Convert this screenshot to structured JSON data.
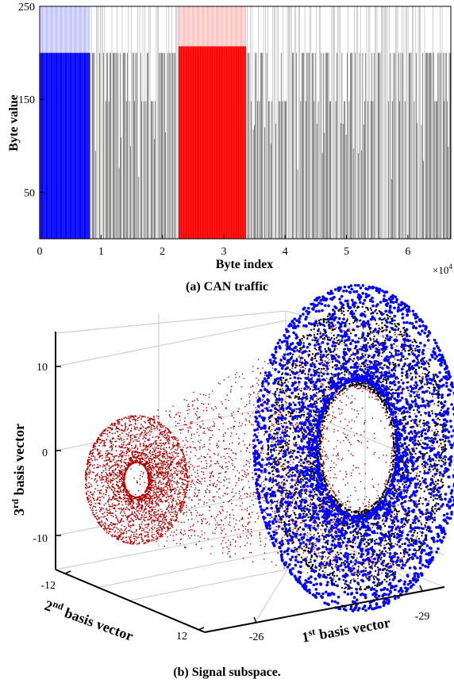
{
  "figure": {
    "caption_a": "(a) CAN traffic",
    "caption_b": "(b) Signal subspace."
  },
  "chart_data": [
    {
      "type": "bar",
      "xlabel": "Byte index",
      "ylabel": "Byte value",
      "x_multiplier_label": "×10",
      "x_multiplier_exp": "4",
      "xlim": [
        0,
        6.7
      ],
      "ylim": [
        0,
        250
      ],
      "x_ticks": [
        "0",
        "1",
        "2",
        "3",
        "4",
        "5",
        "6"
      ],
      "y_ticks": [
        "50",
        "150",
        "250"
      ],
      "grid": false,
      "highlight_regions": [
        {
          "color": "#0000ff",
          "x_start": 0.0,
          "x_end": 0.82
        },
        {
          "color": "#ff0000",
          "x_start": 2.27,
          "x_end": 3.37
        }
      ],
      "base_color": "#000000"
    },
    {
      "type": "scatter",
      "xlabel_main": "1",
      "xlabel_sup": "st",
      "xlabel_tail": " basis vector",
      "ylabel_main": "2",
      "ylabel_sup": "nd",
      "ylabel_tail": " basis vector",
      "zlabel_main": "3",
      "zlabel_sup": "rd",
      "zlabel_tail": " basis vector",
      "x_ticks": [
        "-26",
        "-29"
      ],
      "y_ticks": [
        "-12",
        "12"
      ],
      "z_ticks": [
        "10",
        "0",
        "-10"
      ],
      "grid": true,
      "series": [
        {
          "color": "#b00000",
          "description_values": {
            "left_ring_center": [
              -22.5,
              0,
              0
            ],
            "right_ring_center": [
              -28.5,
              0,
              0
            ]
          }
        },
        {
          "color": "#000000"
        },
        {
          "color": "#0000ff"
        }
      ]
    }
  ]
}
